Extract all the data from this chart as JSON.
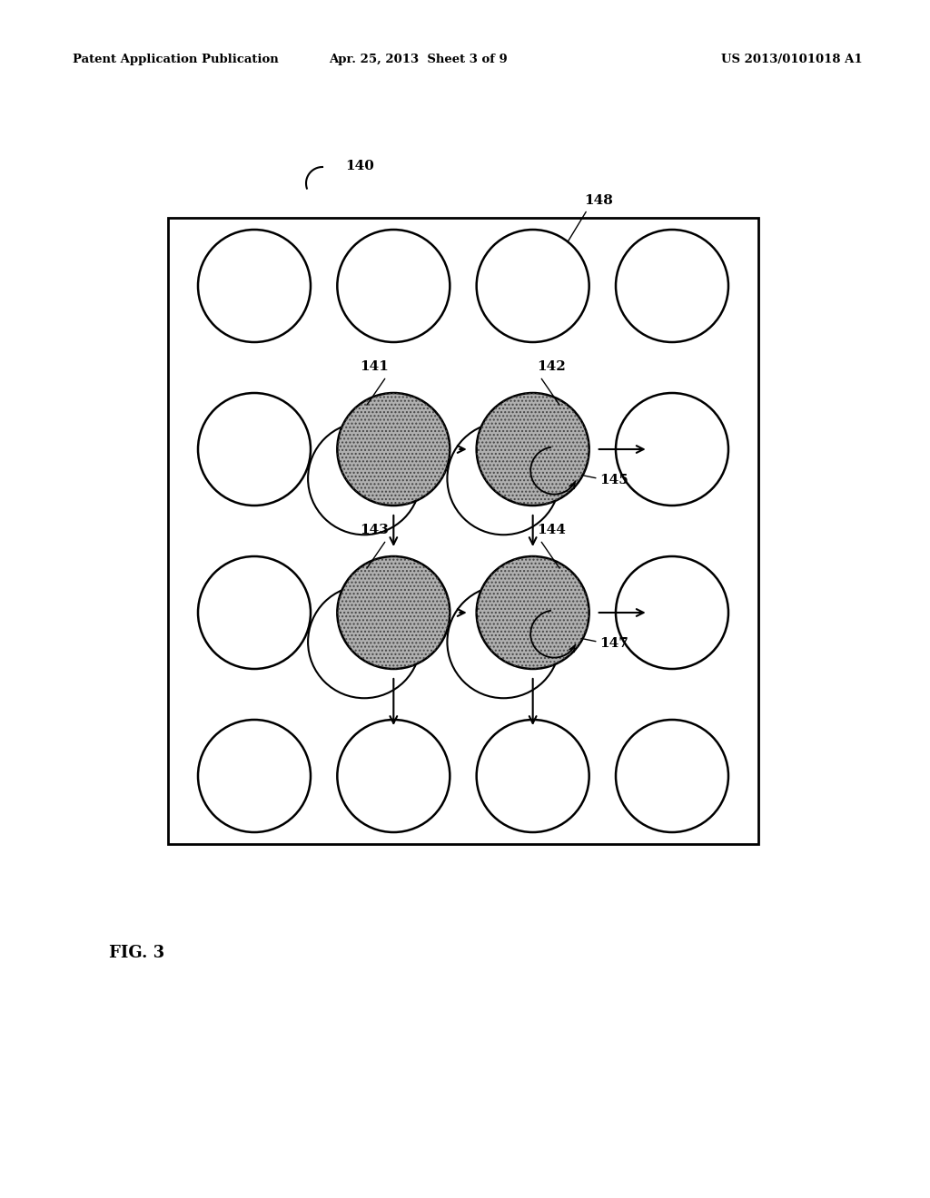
{
  "bg_color": "#ffffff",
  "header_left": "Patent Application Publication",
  "header_mid": "Apr. 25, 2013  Sheet 3 of 9",
  "header_right": "US 2013/0101018 A1",
  "fig_label": "FIG. 3",
  "label_140": "140",
  "label_141": "141",
  "label_142": "142",
  "label_143": "143",
  "label_144": "144",
  "label_145": "145",
  "label_147": "147",
  "label_148": "148",
  "open_circle_color": "#ffffff",
  "open_circle_edge": "#000000",
  "shaded_circle_color": "#b0b0b0",
  "shaded_circle_edge": "#000000"
}
